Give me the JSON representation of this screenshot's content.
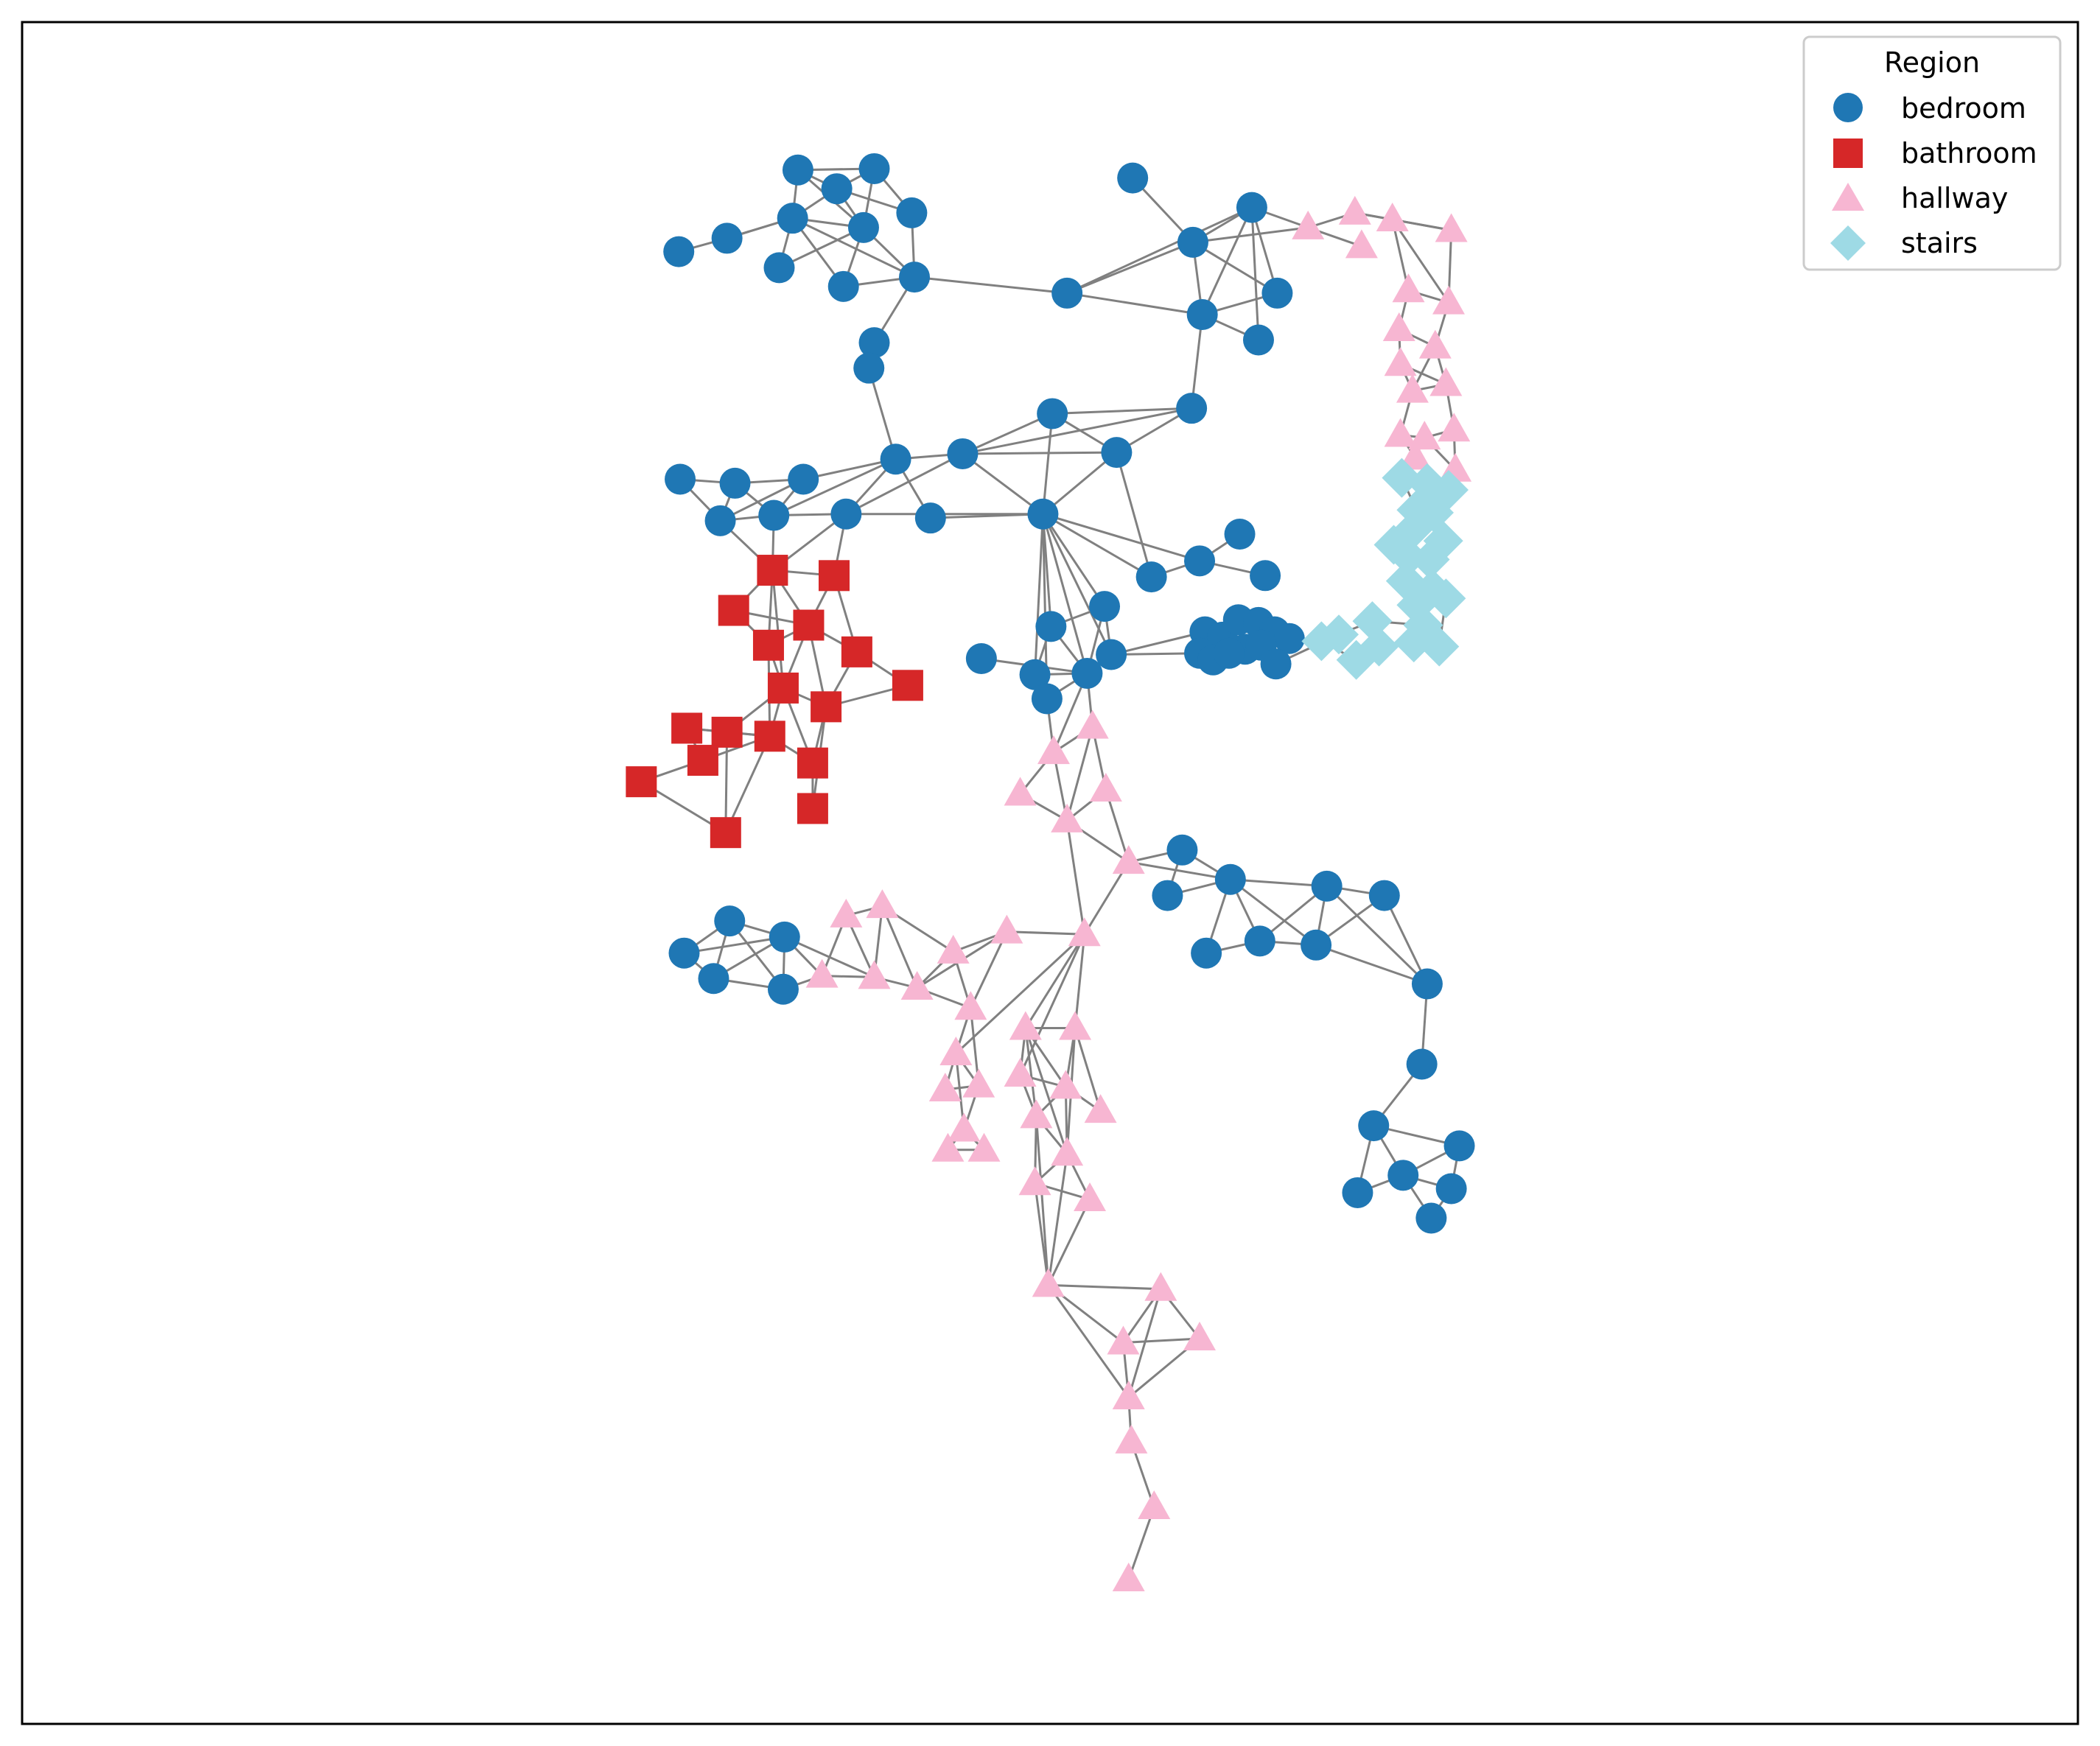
{
  "legend": {
    "title": "Region",
    "entries": [
      {
        "label": "bedroom",
        "color": "#1f77b4",
        "shape": "circle"
      },
      {
        "label": "bathroom",
        "color": "#d62728",
        "shape": "square"
      },
      {
        "label": "hallway",
        "color": "#f7b6d2",
        "shape": "triangle"
      },
      {
        "label": "stairs",
        "color": "#9edae5",
        "shape": "diamond"
      }
    ]
  },
  "edge_color": "#808080"
}
